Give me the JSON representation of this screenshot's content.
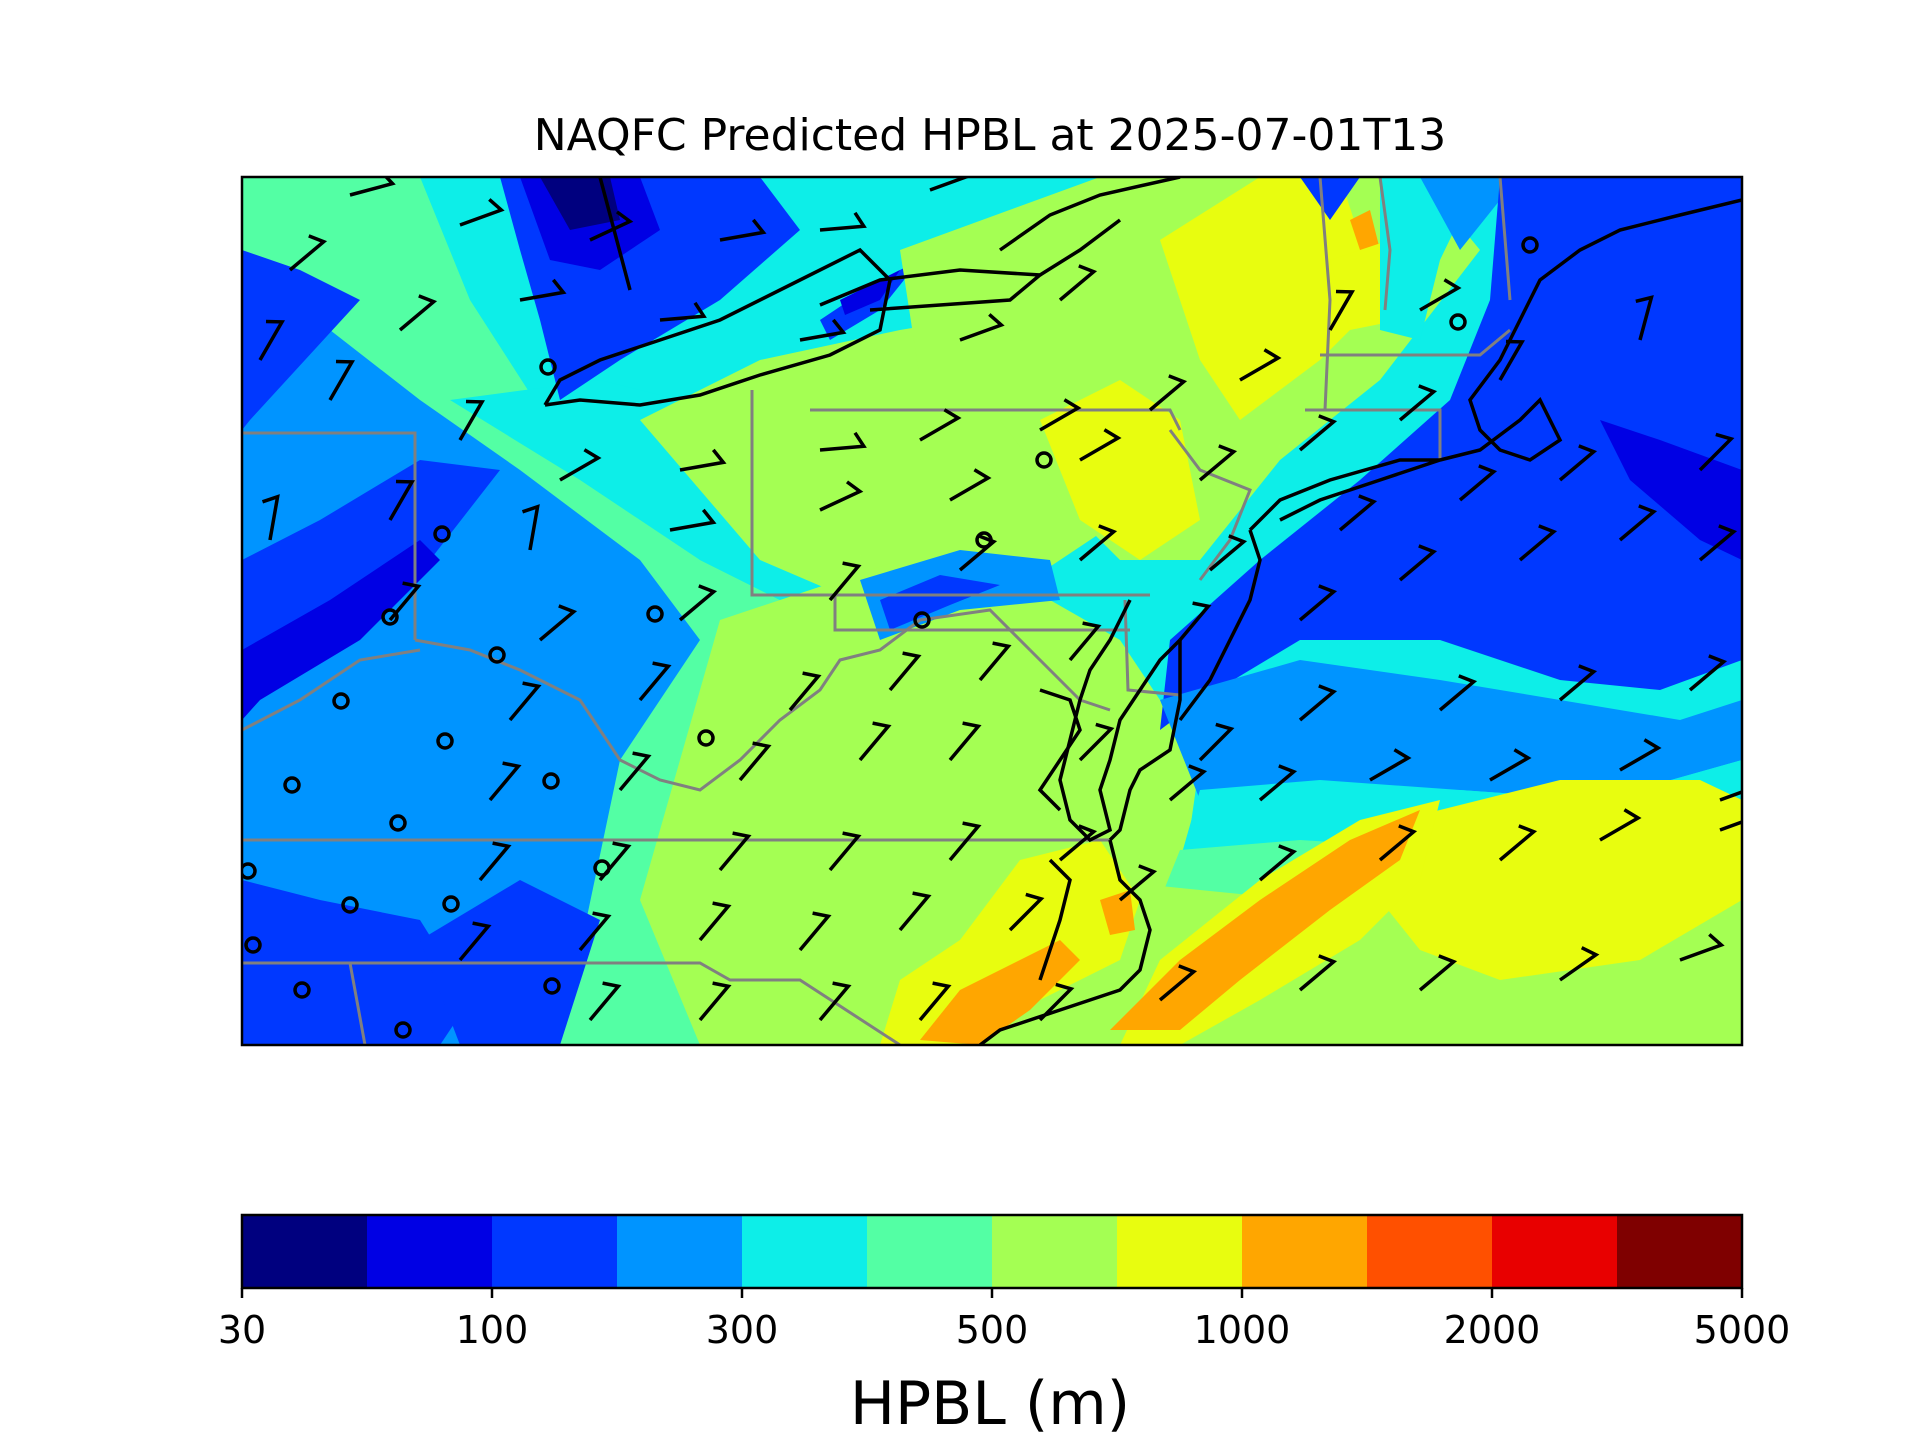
{
  "title": "NAQFC Predicted HPBL at 2025-07-01T13",
  "colorbar": {
    "label": "HPBL (m)",
    "bins": [
      {
        "from": 30,
        "color": "#00007f"
      },
      {
        "from": 50,
        "color": "#0000e4"
      },
      {
        "from": 100,
        "color": "#0038ff"
      },
      {
        "from": 200,
        "color": "#0094ff"
      },
      {
        "from": 300,
        "color": "#0deee8"
      },
      {
        "from": 400,
        "color": "#53ffa4"
      },
      {
        "from": 500,
        "color": "#a4ff53"
      },
      {
        "from": 700,
        "color": "#e8fd0f"
      },
      {
        "from": 1000,
        "color": "#ffa600"
      },
      {
        "from": 1500,
        "color": "#ff5000"
      },
      {
        "from": 2000,
        "color": "#e80000"
      },
      {
        "from": 3000,
        "color": "#7f0000"
      }
    ],
    "tick_labels": [
      "30",
      "100",
      "300",
      "500",
      "1000",
      "2000",
      "5000"
    ]
  },
  "colors": {
    "coastline": "#000000",
    "state_borders": "#808080",
    "wind_barbs": "#000000"
  }
}
